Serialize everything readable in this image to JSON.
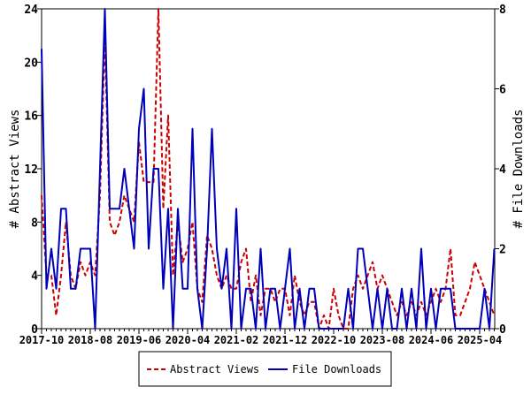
{
  "chart_data": {
    "type": "line",
    "x_start": "2017-10",
    "x_tick_labels": [
      "2017-10",
      "2018-08",
      "2019-06",
      "2020-04",
      "2021-02",
      "2021-12",
      "2022-10",
      "2023-08",
      "2024-06",
      "2025-04"
    ],
    "ylabel": "# Abstract Views",
    "y2label": "# File Downloads",
    "ylim": [
      0,
      24
    ],
    "y2lim": [
      0,
      8
    ],
    "y_ticks": [
      "0",
      "4",
      "8",
      "12",
      "16",
      "20",
      "24"
    ],
    "y2_ticks": [
      "0",
      "2",
      "4",
      "6",
      "8"
    ],
    "legend_placement": "bottom",
    "series": [
      {
        "name": "Abstract Views",
        "axis": "left",
        "color": "#cc0000",
        "style": "dashed",
        "values": [
          10,
          4,
          4,
          1,
          4,
          8,
          4,
          3,
          5,
          4,
          5,
          4,
          10,
          22,
          8,
          7,
          8,
          10,
          9,
          8,
          14,
          11,
          11,
          11,
          24,
          9,
          16,
          4,
          8,
          5,
          6,
          8,
          3,
          2,
          7,
          6,
          4,
          3,
          4,
          3,
          3,
          5,
          6,
          2,
          4,
          1,
          3,
          3,
          2,
          3,
          3,
          1,
          4,
          2,
          1,
          2,
          2,
          0,
          1,
          0,
          3,
          1,
          0,
          0,
          3,
          4,
          3,
          4,
          5,
          3,
          4,
          3,
          2,
          1,
          2,
          1,
          2,
          1,
          2,
          1,
          2,
          3,
          2,
          3,
          6,
          1,
          1,
          2,
          3,
          5,
          4,
          3,
          2,
          1
        ]
      },
      {
        "name": "File Downloads",
        "axis": "right",
        "color": "#0000bb",
        "style": "solid",
        "values": [
          7,
          1,
          2,
          1,
          3,
          3,
          1,
          1,
          2,
          2,
          2,
          0,
          4,
          8,
          3,
          3,
          3,
          4,
          3,
          2,
          5,
          6,
          2,
          4,
          4,
          1,
          3,
          0,
          3,
          1,
          1,
          5,
          1,
          0,
          2,
          5,
          2,
          1,
          2,
          0,
          3,
          0,
          1,
          1,
          0,
          2,
          0,
          1,
          1,
          0,
          1,
          2,
          0,
          1,
          0,
          1,
          1,
          0,
          0,
          0,
          0,
          0,
          0,
          1,
          0,
          2,
          2,
          1,
          0,
          1,
          0,
          1,
          0,
          0,
          1,
          0,
          1,
          0,
          2,
          0,
          1,
          0,
          1,
          1,
          1,
          0,
          0,
          0,
          0,
          0,
          0,
          1,
          0,
          2
        ]
      }
    ]
  }
}
